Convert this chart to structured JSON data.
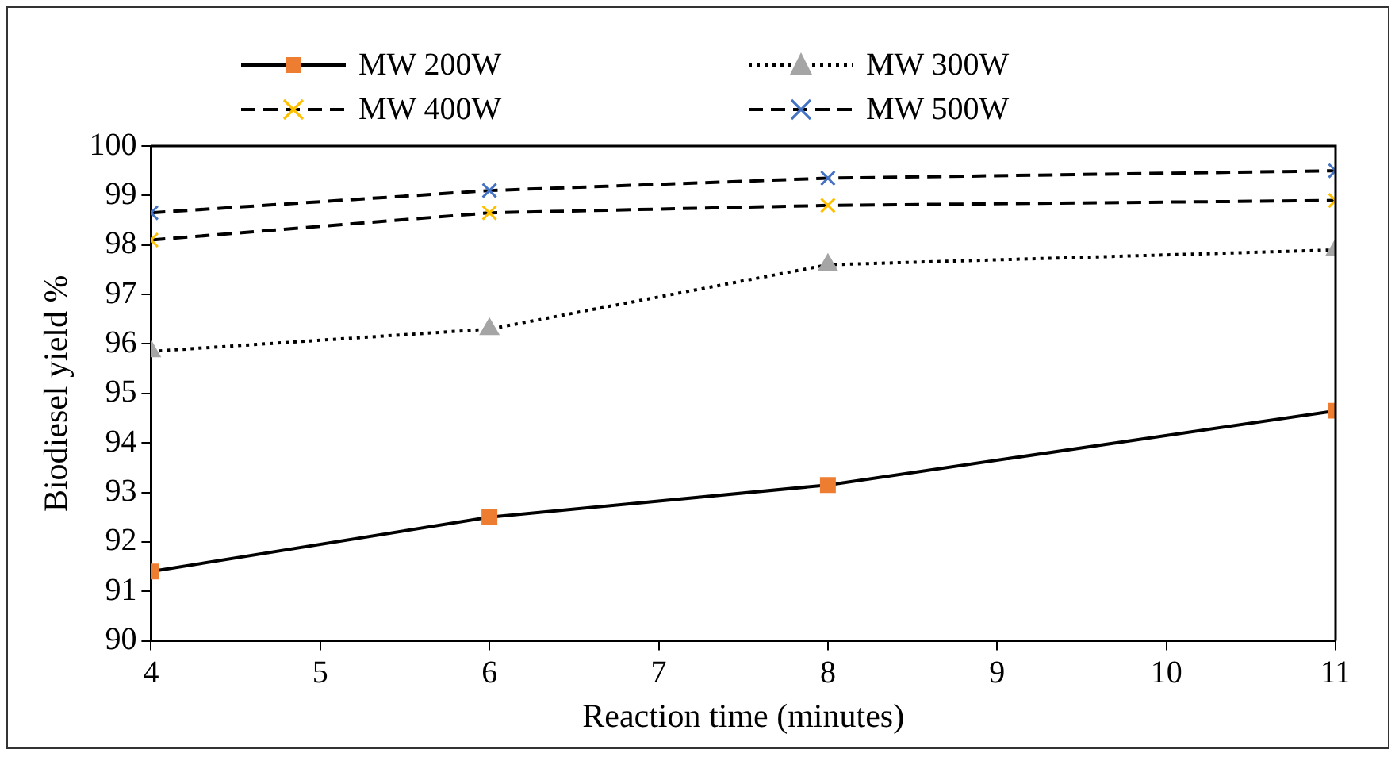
{
  "chart_data": {
    "type": "line",
    "xlabel": "Reaction time (minutes)",
    "ylabel": "Biodiesel yield %",
    "x": [
      4,
      6,
      8,
      11
    ],
    "xlim": [
      4,
      11
    ],
    "xticks": [
      4,
      5,
      6,
      7,
      8,
      9,
      10,
      11
    ],
    "ylim": [
      90,
      100
    ],
    "yticks": [
      90,
      91,
      92,
      93,
      94,
      95,
      96,
      97,
      98,
      99,
      100
    ],
    "grid": false,
    "legend": "top",
    "series": [
      {
        "name": "MW 200W",
        "color": "#ed7d31",
        "marker": "square",
        "line_style": "solid",
        "values": [
          91.4,
          92.5,
          93.15,
          94.65
        ]
      },
      {
        "name": "MW 300W",
        "color": "#a5a5a5",
        "marker": "triangle",
        "line_style": "dotted",
        "values": [
          95.85,
          96.3,
          97.6,
          97.9
        ]
      },
      {
        "name": "MW 400W",
        "color": "#ffc000",
        "marker": "cross",
        "line_style": "dashed",
        "values": [
          98.1,
          98.65,
          98.8,
          98.9
        ]
      },
      {
        "name": "MW 500W",
        "color": "#4472c4",
        "marker": "cross",
        "line_style": "dashed",
        "values": [
          98.65,
          99.1,
          99.35,
          99.5
        ]
      }
    ]
  }
}
